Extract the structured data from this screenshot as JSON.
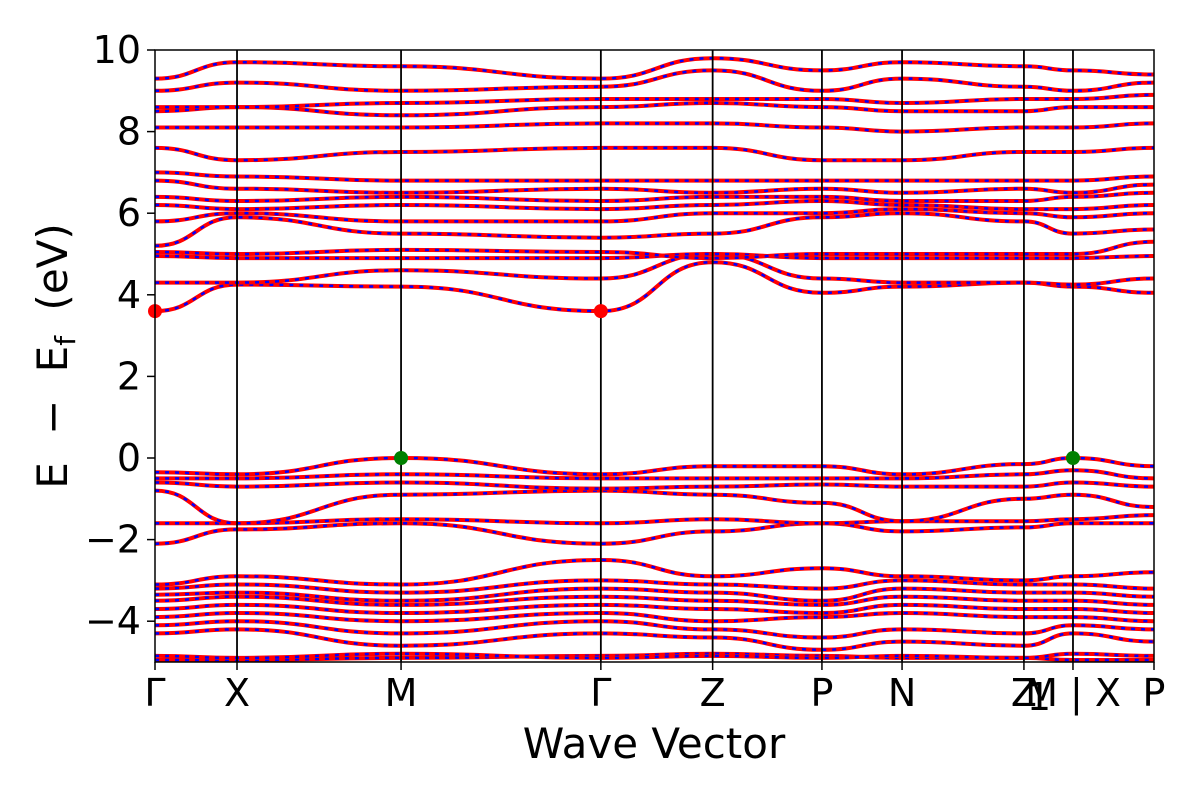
{
  "chart_data": {
    "type": "line",
    "title": "",
    "xlabel": "Wave Vector",
    "ylabel_parts": {
      "e": "E",
      "minus": "−",
      "ef_base": "E",
      "ef_sub": "f",
      "unit": "(eV)"
    },
    "ylim": [
      -5,
      10
    ],
    "yticks": [
      -4,
      -2,
      0,
      2,
      4,
      6,
      8,
      10
    ],
    "ytick_labels": [
      "−4",
      "−2",
      "0",
      "2",
      "4",
      "6",
      "8",
      "10"
    ],
    "grid": false,
    "kpath": {
      "x_positions": [
        0,
        0.0821,
        0.2463,
        0.4463,
        0.5582,
        0.6676,
        0.7478,
        0.8698,
        0.9189,
        1.0
      ],
      "labels": [
        "Γ",
        "X",
        "M",
        "Γ",
        "Z",
        "P",
        "N",
        "Z",
        "M | X",
        "P"
      ],
      "extra_labels": [
        {
          "text": "1",
          "x": 0.8848
        }
      ]
    },
    "series_colors": {
      "up": "#ff0000",
      "down": "#0000ff"
    },
    "extrema": [
      {
        "kind": "CBM",
        "x": 0.0,
        "y": 3.6,
        "color": "#ff0000"
      },
      {
        "kind": "CBM",
        "x": 0.4463,
        "y": 3.6,
        "color": "#ff0000"
      },
      {
        "kind": "VBM",
        "x": 0.2463,
        "y": 0.0,
        "color": "#008000"
      },
      {
        "kind": "VBM",
        "x": 0.9189,
        "y": 0.0,
        "color": "#008000"
      }
    ],
    "bands": [
      [
        -4.95,
        -4.95,
        -4.9,
        -4.85,
        -4.8,
        -4.85,
        -4.9,
        -4.9,
        -4.95,
        -4.95
      ],
      [
        -4.85,
        -4.9,
        -4.8,
        -4.9,
        -4.85,
        -4.9,
        -4.85,
        -4.9,
        -4.8,
        -4.85
      ],
      [
        -4.3,
        -4.2,
        -4.6,
        -4.3,
        -4.4,
        -4.7,
        -4.5,
        -4.6,
        -4.3,
        -4.5
      ],
      [
        -4.1,
        -4.0,
        -4.3,
        -4.0,
        -4.2,
        -4.4,
        -4.2,
        -4.3,
        -4.1,
        -4.2
      ],
      [
        -3.9,
        -3.8,
        -4.0,
        -3.8,
        -4.0,
        -3.9,
        -3.8,
        -3.9,
        -3.9,
        -4.0
      ],
      [
        -3.7,
        -3.6,
        -3.8,
        -3.6,
        -3.7,
        -3.8,
        -3.6,
        -3.7,
        -3.7,
        -3.8
      ],
      [
        -3.5,
        -3.4,
        -3.6,
        -3.4,
        -3.5,
        -3.6,
        -3.4,
        -3.5,
        -3.5,
        -3.6
      ],
      [
        -3.35,
        -3.3,
        -3.5,
        -3.2,
        -3.3,
        -3.5,
        -3.2,
        -3.3,
        -3.3,
        -3.4
      ],
      [
        -3.2,
        -3.1,
        -3.3,
        -3.0,
        -3.1,
        -3.2,
        -3.0,
        -3.1,
        -3.1,
        -3.2
      ],
      [
        -3.1,
        -2.9,
        -3.1,
        -2.5,
        -2.9,
        -2.7,
        -2.9,
        -3.0,
        -2.9,
        -2.8
      ],
      [
        -2.1,
        -1.75,
        -1.6,
        -2.1,
        -1.8,
        -1.6,
        -1.8,
        -1.7,
        -1.6,
        -1.6
      ],
      [
        -1.6,
        -1.6,
        -1.5,
        -1.6,
        -1.5,
        -1.6,
        -1.55,
        -1.55,
        -1.5,
        -1.4
      ],
      [
        -0.8,
        -1.6,
        -0.9,
        -0.8,
        -0.9,
        -1.1,
        -1.55,
        -1.0,
        -0.9,
        -1.2
      ],
      [
        -0.6,
        -0.7,
        -0.6,
        -0.75,
        -0.7,
        -0.65,
        -0.7,
        -0.7,
        -0.6,
        -0.7
      ],
      [
        -0.5,
        -0.5,
        -0.4,
        -0.5,
        -0.5,
        -0.5,
        -0.5,
        -0.4,
        -0.3,
        -0.5
      ],
      [
        -0.35,
        -0.4,
        0.0,
        -0.4,
        -0.2,
        -0.2,
        -0.4,
        -0.15,
        0.0,
        -0.2
      ],
      [
        3.6,
        4.25,
        4.2,
        3.6,
        4.8,
        4.05,
        4.2,
        4.3,
        4.2,
        4.05
      ],
      [
        4.3,
        4.3,
        4.6,
        4.4,
        5.0,
        4.4,
        4.3,
        4.3,
        4.25,
        4.4
      ],
      [
        4.95,
        4.9,
        4.9,
        4.9,
        5.0,
        4.9,
        4.9,
        4.9,
        4.9,
        4.95
      ],
      [
        5.05,
        5.0,
        5.1,
        5.05,
        4.9,
        5.0,
        5.0,
        5.0,
        5.0,
        5.3
      ],
      [
        5.2,
        5.9,
        5.5,
        5.4,
        5.5,
        5.9,
        6.0,
        5.8,
        5.5,
        5.6
      ],
      [
        5.8,
        6.0,
        5.8,
        5.8,
        6.0,
        6.0,
        6.1,
        6.0,
        5.9,
        6.0
      ],
      [
        6.2,
        6.1,
        6.2,
        6.1,
        6.2,
        6.3,
        6.2,
        6.1,
        6.1,
        6.2
      ],
      [
        6.4,
        6.3,
        6.4,
        6.3,
        6.4,
        6.4,
        6.3,
        6.3,
        6.4,
        6.5
      ],
      [
        6.8,
        6.6,
        6.5,
        6.6,
        6.5,
        6.6,
        6.5,
        6.6,
        6.5,
        6.7
      ],
      [
        7.0,
        6.9,
        6.8,
        6.8,
        6.8,
        6.8,
        6.8,
        6.8,
        6.8,
        6.9
      ],
      [
        7.6,
        7.3,
        7.5,
        7.6,
        7.6,
        7.3,
        7.3,
        7.5,
        7.5,
        7.6
      ],
      [
        8.1,
        8.1,
        8.1,
        8.2,
        8.2,
        8.1,
        8.0,
        8.1,
        8.1,
        8.2
      ],
      [
        8.5,
        8.6,
        8.4,
        8.6,
        8.7,
        8.6,
        8.5,
        8.5,
        8.6,
        8.6
      ],
      [
        8.6,
        8.6,
        8.7,
        8.8,
        8.8,
        8.8,
        8.7,
        8.8,
        8.8,
        8.9
      ],
      [
        9.0,
        9.2,
        9.0,
        9.1,
        9.5,
        9.0,
        9.3,
        9.1,
        9.0,
        9.2
      ],
      [
        9.3,
        9.7,
        9.6,
        9.3,
        9.8,
        9.5,
        9.7,
        9.6,
        9.5,
        9.4
      ]
    ]
  }
}
